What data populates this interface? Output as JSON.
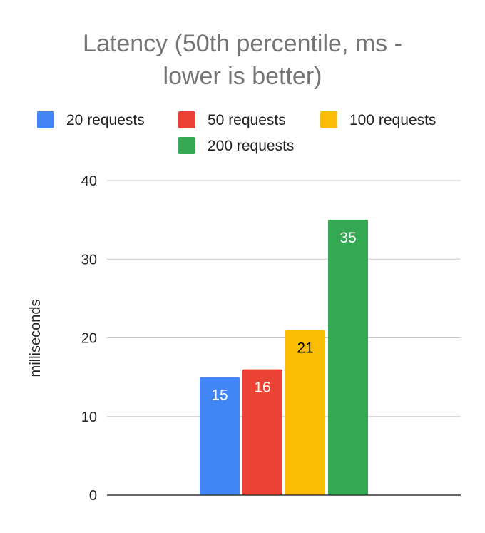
{
  "chart_data": {
    "type": "bar",
    "title_lines": [
      "Latency (50th percentile, ms -",
      "lower is better)"
    ],
    "ylabel": "milliseconds",
    "xlabel": "",
    "ylim": [
      0,
      40
    ],
    "yticks": [
      0,
      10,
      20,
      30,
      40
    ],
    "grid": true,
    "legend_position": "top",
    "series": [
      {
        "name": "20 requests",
        "value": 15,
        "color": "#4285f4",
        "label_color": "#ffffff"
      },
      {
        "name": "50 requests",
        "value": 16,
        "color": "#ea4335",
        "label_color": "#ffffff"
      },
      {
        "name": "100 requests",
        "value": 21,
        "color": "#fbbc04",
        "label_color": "#000000"
      },
      {
        "name": "200 requests",
        "value": 35,
        "color": "#34a853",
        "label_color": "#ffffff"
      }
    ],
    "colors": {
      "title": "#757575",
      "axis_text": "#222222",
      "gridline": "#cccccc",
      "baseline": "#333333"
    }
  }
}
